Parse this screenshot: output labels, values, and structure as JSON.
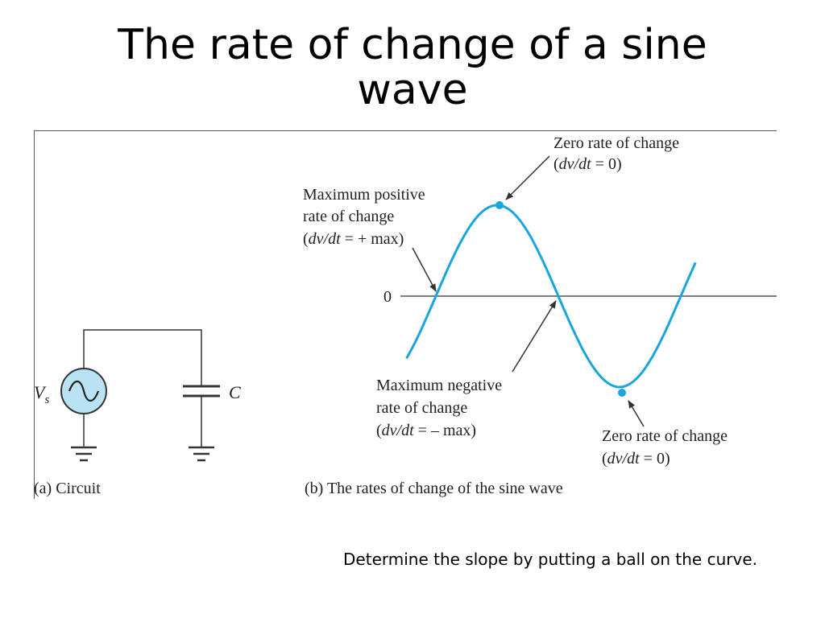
{
  "slide": {
    "title_line1": "The rate of change of a sine",
    "title_line2": "wave",
    "note": "Determine the slope by putting a ball on the curve."
  },
  "figure": {
    "circuit": {
      "source_label": "V",
      "source_subscript": "s",
      "capacitor_label": "C",
      "caption": "(a) Circuit"
    },
    "waveform": {
      "zero_axis_label": "0",
      "caption": "(b) The rates of change of the sine wave",
      "annotations": {
        "max_positive": {
          "line1": "Maximum positive",
          "line2": "rate of change",
          "line3_pre": "(",
          "line3_italic": "dv/dt",
          "line3_post": " = + max)"
        },
        "zero_top": {
          "line1": "Zero rate of change",
          "line2_pre": "(",
          "line2_italic": "dv/dt",
          "line2_post": "  =  0)"
        },
        "max_negative": {
          "line1": "Maximum negative",
          "line2": "rate of change",
          "line3_pre": "(",
          "line3_italic": "dv/dt",
          "line3_post": " = – max)"
        },
        "zero_bottom": {
          "line1": "Zero rate of change",
          "line2_pre": "(",
          "line2_italic": "dv/dt",
          "line2_post": "  =  0)"
        }
      }
    },
    "colors": {
      "wave": "#1aa6dc",
      "source_fill": "#b9e3f4",
      "line": "#333333"
    }
  }
}
